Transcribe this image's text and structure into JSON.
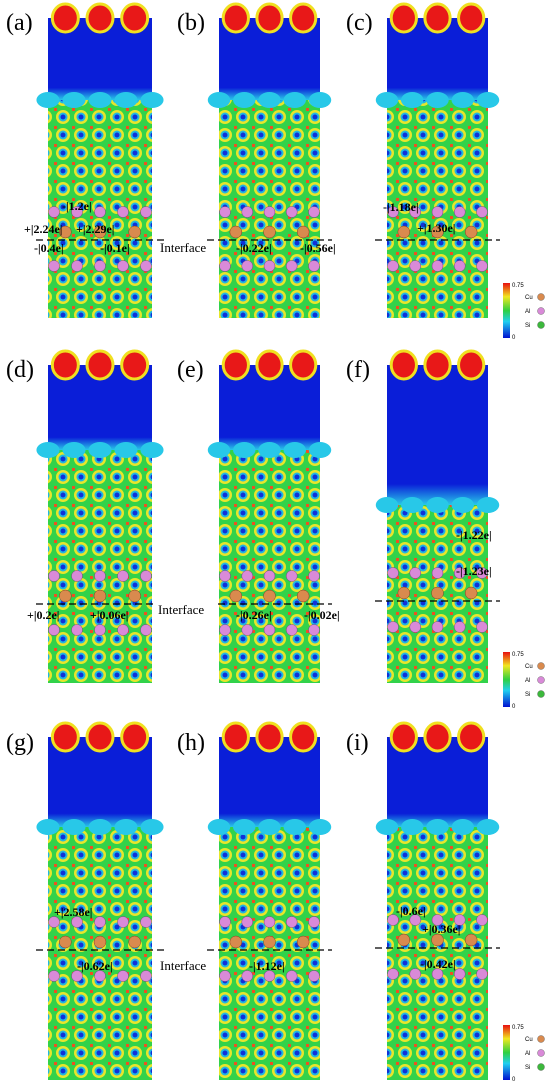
{
  "panels": [
    {
      "label": "(a)",
      "charges": [
        "-|1.2e|",
        "+|2.24e|",
        "+|2.29e|",
        "-|0.4e|",
        "-|0.1e|"
      ]
    },
    {
      "label": "(b)",
      "charges": [
        "-|0.22e|",
        "-|0.56e|"
      ]
    },
    {
      "label": "(c)",
      "charges": [
        "-|1.18e|",
        "+|1.30e|"
      ]
    },
    {
      "label": "(d)",
      "charges": [
        "+|0.2e|",
        "+|0.06e|"
      ]
    },
    {
      "label": "(e)",
      "charges": [
        "-|0.26e|",
        "-|0.02e|"
      ]
    },
    {
      "label": "(f)",
      "charges": [
        "-|1.22e|",
        "-|1.23e|"
      ]
    },
    {
      "label": "(g)",
      "charges": [
        "+|2.58e|",
        "-|0.62e|"
      ]
    },
    {
      "label": "(h)",
      "charges": [
        "-|1.12e|"
      ]
    },
    {
      "label": "(i)",
      "charges": [
        "-|0.6e|",
        "+|0.36e|",
        "-|0.42e|"
      ]
    }
  ],
  "interface_labels": [
    "Interface",
    "Interface",
    "Interface"
  ],
  "colorbars": [
    {
      "max": "0.75",
      "min": "0",
      "species": [
        "Cu",
        "Al",
        "Si"
      ]
    },
    {
      "max": "0.75",
      "min": "0",
      "species": [
        "Cu",
        "Al",
        "Si"
      ]
    },
    {
      "max": "0.75",
      "min": "0",
      "species": [
        "Cu",
        "Al",
        "Si"
      ]
    }
  ]
}
